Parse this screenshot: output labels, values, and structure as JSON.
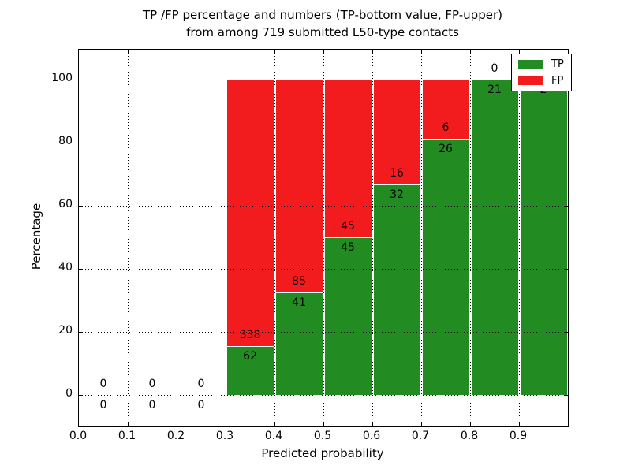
{
  "figure": {
    "kind": "matplotlib-style stacked bar figure",
    "background": "#ffffff"
  },
  "chart_data": {
    "type": "bar",
    "stacked": true,
    "title_line1": "TP /FP percentage and numbers (TP-bottom value, FP-upper)",
    "title_line2": "from among 719 submitted L50-type contacts",
    "xlabel": "Predicted probability",
    "ylabel": "Percentage",
    "xlim": [
      0.0,
      1.0
    ],
    "ylim": [
      -10,
      110
    ],
    "grid": "dotted black, both axes, drawn over bars",
    "bin_width": 0.1,
    "bin_edges": [
      0.0,
      0.1,
      0.2,
      0.3,
      0.4,
      0.5,
      0.6,
      0.7,
      0.8,
      0.9,
      1.0
    ],
    "categories": [
      "0.0-0.1",
      "0.1-0.2",
      "0.2-0.3",
      "0.3-0.4",
      "0.4-0.5",
      "0.5-0.6",
      "0.6-0.7",
      "0.7-0.8",
      "0.8-0.9",
      "0.9-1.0"
    ],
    "xtick_labels": [
      "0.0",
      "0.1",
      "0.2",
      "0.3",
      "0.4",
      "0.5",
      "0.6",
      "0.7",
      "0.8",
      "0.9"
    ],
    "ytick_labels": [
      "0",
      "20",
      "40",
      "60",
      "80",
      "100"
    ],
    "ytick_values": [
      0,
      20,
      40,
      60,
      80,
      100
    ],
    "series": [
      {
        "name": "TP",
        "color": "#228b22",
        "label_position": "bottom",
        "values": [
          0,
          0,
          0,
          62,
          41,
          45,
          32,
          26,
          21,
          2
        ]
      },
      {
        "name": "FP",
        "color": "#f21b1e",
        "label_position": "upper",
        "values": [
          0,
          0,
          0,
          338,
          85,
          45,
          16,
          6,
          0,
          0
        ]
      }
    ],
    "bars_normalized_to_percent": true,
    "tp_percent_by_bin": [
      0,
      0,
      0,
      15.5,
      32.5,
      50.0,
      66.7,
      81.3,
      100.0,
      100.0
    ],
    "total_contacts": 719,
    "legend": {
      "position": "upper right",
      "entries": [
        {
          "label": "TP",
          "color": "#228b22"
        },
        {
          "label": "FP",
          "color": "#f21b1e"
        }
      ]
    }
  }
}
